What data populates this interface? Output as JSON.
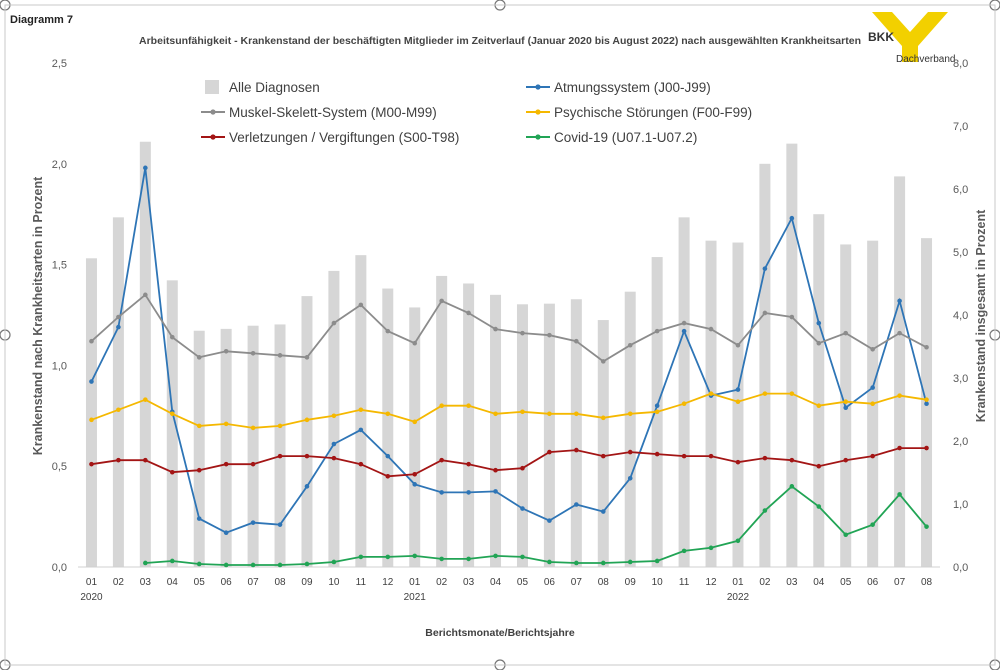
{
  "diagram_label": "Diagramm 7",
  "logo": {
    "name": "BKK",
    "subtitle": "Dachverband",
    "color": "#f2d000"
  },
  "chart_data": {
    "type": "bar+line",
    "title": "Arbeitsunfähigkeit - Krankenstand der beschäftigten Mitglieder im Zeitverlauf (Januar 2020 bis August 2022) nach ausgewählten Krankheitsarten",
    "xlabel": "Berichtsmonate/Berichtsjahre",
    "ylabel_left": "Krankenstand nach Krankheitsarten in Prozent",
    "ylabel_right": "Krankenstand insgesamt in Prozent",
    "ylim_left": [
      0,
      2.5
    ],
    "ylim_right": [
      0,
      8.0
    ],
    "yticks_left": [
      "0,0",
      "0,5",
      "1,0",
      "1,5",
      "2,0",
      "2,5"
    ],
    "yticks_right": [
      "0,0",
      "1,0",
      "2,0",
      "3,0",
      "4,0",
      "5,0",
      "6,0",
      "7,0",
      "8,0"
    ],
    "categories": [
      "01",
      "02",
      "03",
      "04",
      "05",
      "06",
      "07",
      "08",
      "09",
      "10",
      "11",
      "12",
      "01",
      "02",
      "03",
      "04",
      "05",
      "06",
      "07",
      "08",
      "09",
      "10",
      "11",
      "12",
      "01",
      "02",
      "03",
      "04",
      "05",
      "06",
      "07",
      "08"
    ],
    "year_labels": [
      {
        "index": 0,
        "label": "2020"
      },
      {
        "index": 12,
        "label": "2021"
      },
      {
        "index": 24,
        "label": "2022"
      }
    ],
    "bars": {
      "name": "Alle Diagnosen",
      "axis": "right",
      "color": "#d6d6d6",
      "values": [
        4.9,
        5.55,
        6.75,
        4.55,
        3.75,
        3.78,
        3.83,
        3.85,
        4.3,
        4.7,
        4.95,
        4.42,
        4.12,
        4.62,
        4.5,
        4.32,
        4.17,
        4.18,
        4.25,
        3.92,
        4.37,
        4.92,
        5.55,
        5.18,
        5.15,
        6.4,
        6.72,
        5.6,
        5.12,
        5.18,
        6.2,
        5.22
      ]
    },
    "series": [
      {
        "name": "Atmungssystem (J00-J99)",
        "color": "#2e75b6",
        "values": [
          0.92,
          1.19,
          1.98,
          0.77,
          0.24,
          0.17,
          0.22,
          0.21,
          0.4,
          0.61,
          0.68,
          0.55,
          0.41,
          0.37,
          0.37,
          0.375,
          0.29,
          0.23,
          0.31,
          0.275,
          0.44,
          0.8,
          1.17,
          0.85,
          0.88,
          1.48,
          1.73,
          1.21,
          0.79,
          0.89,
          1.32,
          0.81
        ]
      },
      {
        "name": "Psychische Störungen (F00-F99)",
        "color": "#f5b800",
        "values": [
          0.73,
          0.78,
          0.83,
          0.76,
          0.7,
          0.71,
          0.69,
          0.7,
          0.73,
          0.75,
          0.78,
          0.76,
          0.72,
          0.8,
          0.8,
          0.76,
          0.77,
          0.76,
          0.76,
          0.74,
          0.76,
          0.77,
          0.81,
          0.86,
          0.82,
          0.86,
          0.86,
          0.8,
          0.82,
          0.81,
          0.85,
          0.83
        ]
      },
      {
        "name": "Muskel-Skelett-System (M00-M99)",
        "color": "#8c8c8c",
        "values": [
          1.12,
          1.24,
          1.35,
          1.14,
          1.04,
          1.07,
          1.06,
          1.05,
          1.04,
          1.21,
          1.3,
          1.17,
          1.11,
          1.32,
          1.26,
          1.18,
          1.16,
          1.15,
          1.12,
          1.02,
          1.1,
          1.17,
          1.21,
          1.18,
          1.1,
          1.26,
          1.24,
          1.11,
          1.16,
          1.08,
          1.16,
          1.09
        ]
      },
      {
        "name": "Covid-19 (U07.1-U07.2)",
        "color": "#21a455",
        "values": [
          null,
          null,
          0.02,
          0.03,
          0.015,
          0.01,
          0.01,
          0.01,
          0.015,
          0.025,
          0.05,
          0.05,
          0.055,
          0.04,
          0.04,
          0.055,
          0.05,
          0.025,
          0.02,
          0.02,
          0.025,
          0.03,
          0.08,
          0.095,
          0.13,
          0.28,
          0.4,
          0.3,
          0.16,
          0.21,
          0.36,
          0.2
        ]
      },
      {
        "name": "Verletzungen / Vergiftungen (S00-T98)",
        "color": "#a31515",
        "values": [
          0.51,
          0.53,
          0.53,
          0.47,
          0.48,
          0.51,
          0.51,
          0.55,
          0.55,
          0.54,
          0.51,
          0.45,
          0.46,
          0.53,
          0.51,
          0.48,
          0.49,
          0.57,
          0.58,
          0.55,
          0.57,
          0.56,
          0.55,
          0.55,
          0.52,
          0.54,
          0.53,
          0.5,
          0.53,
          0.55,
          0.59,
          0.59
        ]
      }
    ],
    "legend": [
      "Alle Diagnosen",
      "Atmungssystem (J00-J99)",
      "Muskel-Skelett-System (M00-M99)",
      "Psychische Störungen (F00-F99)",
      "Verletzungen / Vergiftungen (S00-T98)",
      "Covid-19 (U07.1-U07.2)"
    ],
    "grid": false
  }
}
